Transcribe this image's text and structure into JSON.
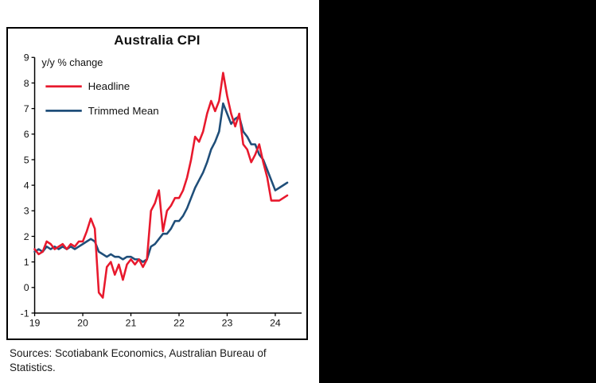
{
  "page": {
    "title": "Australia CPI",
    "sources": "Sources: Scotiabank Economics, Australian Bureau of Statistics."
  },
  "chart_data": {
    "type": "line",
    "title": "Australia CPI",
    "annotation": "y/y % change",
    "frequency": "monthly",
    "x_start": 2019,
    "x_tick_labels": [
      "19",
      "20",
      "21",
      "22",
      "23",
      "24"
    ],
    "yticks": [
      9,
      8,
      7,
      6,
      5,
      4,
      3,
      2,
      1,
      0,
      -1
    ],
    "ylim": [
      -1,
      9
    ],
    "grid": false,
    "legend_position": "top-left",
    "series": [
      {
        "name": "Headline",
        "color": "#e8192d",
        "values": [
          1.5,
          1.3,
          1.4,
          1.8,
          1.7,
          1.5,
          1.6,
          1.7,
          1.5,
          1.7,
          1.6,
          1.8,
          1.8,
          2.2,
          2.7,
          2.3,
          -0.2,
          -0.4,
          0.8,
          1.0,
          0.5,
          0.9,
          0.3,
          0.9,
          1.1,
          0.9,
          1.1,
          0.8,
          1.1,
          3.0,
          3.3,
          3.8,
          2.2,
          3.0,
          3.2,
          3.5,
          3.5,
          3.8,
          4.3,
          5.0,
          5.9,
          5.7,
          6.1,
          6.8,
          7.3,
          6.9,
          7.3,
          8.4,
          7.5,
          6.8,
          6.3,
          6.8,
          5.6,
          5.4,
          4.9,
          5.2,
          5.6,
          4.9,
          4.3,
          3.4,
          3.4,
          3.4,
          3.5,
          3.6
        ]
      },
      {
        "name": "Trimmed Mean",
        "color": "#1f4e79",
        "values": [
          1.4,
          1.5,
          1.4,
          1.6,
          1.5,
          1.6,
          1.5,
          1.6,
          1.5,
          1.6,
          1.5,
          1.6,
          1.7,
          1.8,
          1.9,
          1.8,
          1.4,
          1.3,
          1.2,
          1.3,
          1.2,
          1.2,
          1.1,
          1.2,
          1.2,
          1.1,
          1.1,
          1.0,
          1.1,
          1.6,
          1.7,
          1.9,
          2.1,
          2.1,
          2.3,
          2.6,
          2.6,
          2.8,
          3.1,
          3.5,
          3.9,
          4.2,
          4.5,
          4.9,
          5.4,
          5.7,
          6.1,
          7.2,
          6.8,
          6.4,
          6.6,
          6.7,
          6.1,
          5.9,
          5.6,
          5.6,
          5.2,
          5.0,
          4.6,
          4.2,
          3.8,
          3.9,
          4.0,
          4.1
        ]
      }
    ]
  }
}
